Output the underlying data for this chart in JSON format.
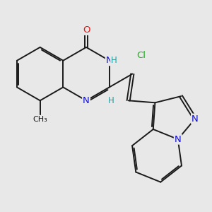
{
  "bg_color": "#e8e8e8",
  "bond_color": "#1a1a1a",
  "bond_width": 1.4,
  "dbo": 0.055,
  "atom_colors": {
    "O": "#ee1111",
    "N": "#1111cc",
    "Cl": "#22aa22",
    "H": "#229999",
    "C": "#1a1a1a"
  },
  "fs": 9.5,
  "hfs": 8.5
}
